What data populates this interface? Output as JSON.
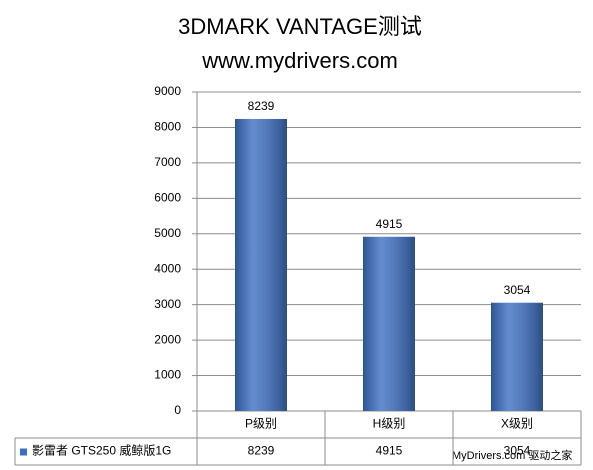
{
  "chart_data": {
    "type": "bar",
    "title": "3DMARK VANTAGE测试",
    "subtitle": "www.mydrivers.com",
    "categories": [
      "P级别",
      "H级别",
      "X级别"
    ],
    "series": [
      {
        "name": "影雷者 GTS250 威鲸版1G",
        "color": "#3c6fc2",
        "values": [
          8239,
          4915,
          3054
        ]
      }
    ],
    "ylim": [
      0,
      9000
    ],
    "yticks": [
      0,
      1000,
      2000,
      3000,
      4000,
      5000,
      6000,
      7000,
      8000,
      9000
    ],
    "grid": true,
    "data_table": true,
    "watermark": "MyDrivers.com 驱动之家"
  }
}
